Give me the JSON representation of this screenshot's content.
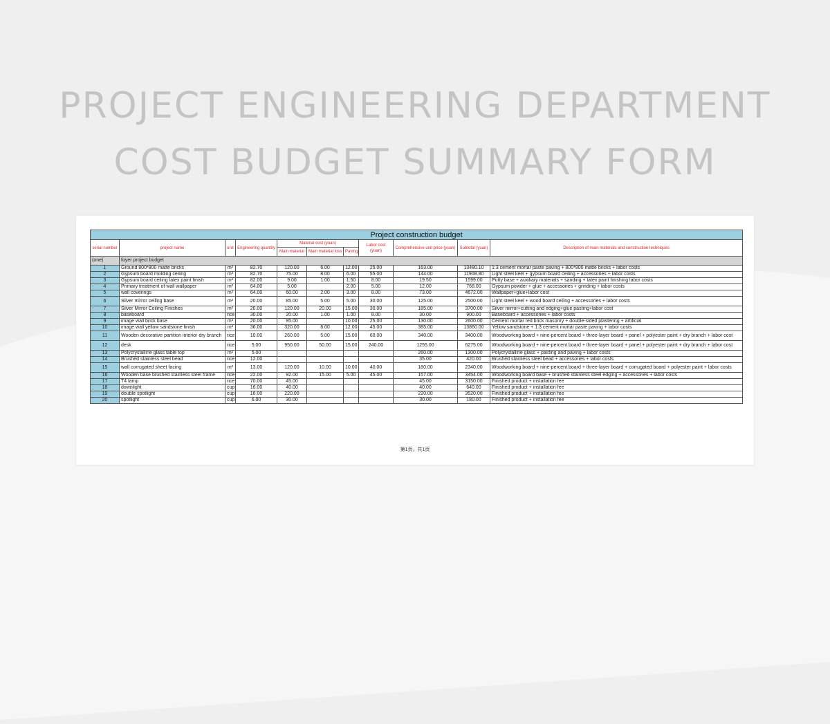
{
  "hero": {
    "line1": "PROJECT ENGINEERING DEPARTMENT",
    "line2": "COST BUDGET SUMMARY FORM"
  },
  "table": {
    "title": "Project construction budget",
    "headers": {
      "serial": "serial number",
      "name": "project name",
      "unit": "unit",
      "quantity": "Engineering quantity",
      "material_group": "Material cost (yuan)",
      "main_material": "Main material",
      "material_loss": "Main material loss",
      "paving": "Paving",
      "labor": "Labor cost (yuan)",
      "unit_price": "Comprehensive unit price (yuan)",
      "subtotal": "Subtotal (yuan)",
      "description": "Description of main materials and construction techniques"
    },
    "section": {
      "code": "(one)",
      "name": "foyer project budget"
    },
    "rows": [
      {
        "n": "1",
        "name": "Ground 800*800 matte bricks",
        "unit": "m²",
        "qty": "82.70",
        "mm": "120.00",
        "loss": "6.00",
        "pav": "12.00",
        "labor": "25.00",
        "price": "163.00",
        "sub": "13480.10",
        "desc": "1:3 cement mortar paste paving + 800*800 matte bricks + labor costs"
      },
      {
        "n": "2",
        "name": "Gypsum board molding ceiling",
        "unit": "m²",
        "qty": "82.70",
        "mm": "75.00",
        "loss": "8.00",
        "pav": "6.00",
        "labor": "55.00",
        "price": "144.00",
        "sub": "11908.80",
        "desc": "Light steel keel + gypsum board ceiling + accessories + labor costs"
      },
      {
        "n": "3",
        "name": "Gypsum board ceiling latex paint finish",
        "unit": "m²",
        "qty": "82.00",
        "mm": "9.00",
        "loss": "1.00",
        "pav": "1.50",
        "labor": "8.00",
        "price": "19.50",
        "sub": "1599.00",
        "desc": "Putty base + auxiliary materials + sanding + latex paint finishing labor costs"
      },
      {
        "n": "4",
        "name": "Primary treatment of wall wallpaper",
        "unit": "m²",
        "qty": "64.00",
        "mm": "5.00",
        "loss": "",
        "pav": "2.00",
        "labor": "5.00",
        "price": "12.00",
        "sub": "768.00",
        "desc": "Gypsum powder + glue + accessories + grinding + labor costs"
      },
      {
        "n": "5",
        "name": "wall coverings",
        "unit": "m²",
        "qty": "64.00",
        "mm": "60.00",
        "loss": "2.00",
        "pav": "3.00",
        "labor": "8.00",
        "price": "73.00",
        "sub": "4672.00",
        "desc": "Wallpaper+glue+labor cost"
      },
      {
        "n": "6",
        "name": "Silver mirror ceiling base",
        "unit": "m²",
        "qty": "20.00",
        "mm": "85.00",
        "loss": "5.00",
        "pav": "5.00",
        "labor": "30.00",
        "price": "125.00",
        "sub": "2500.00",
        "desc": "Light steel keel + wood board ceiling + accessories + labor costs",
        "tall": true
      },
      {
        "n": "7",
        "name": "Silver Mirror Ceiling Finishes",
        "unit": "m²",
        "qty": "20.00",
        "mm": "120.00",
        "loss": "20.00",
        "pav": "15.00",
        "labor": "30.00",
        "price": "185.00",
        "sub": "3700.00",
        "desc": "Silver mirror+cutting and edging+glue pasting+labor cost"
      },
      {
        "n": "8",
        "name": "baseboard",
        "unit": "rice",
        "qty": "30.00",
        "mm": "20.00",
        "loss": "1.00",
        "pav": "1.00",
        "labor": "8.00",
        "price": "30.00",
        "sub": "900.00",
        "desc": "Baseboard + accessories + labor costs"
      },
      {
        "n": "9",
        "name": "image wall brick base",
        "unit": "m²",
        "qty": "20.00",
        "mm": "95.00",
        "loss": "",
        "pav": "10.00",
        "labor": "25.00",
        "price": "130.00",
        "sub": "2600.00",
        "desc": "Cement mortar red brick masonry + double-sided plastering + artificial"
      },
      {
        "n": "10",
        "name": "image wall yellow sandstone finish",
        "unit": "m²",
        "qty": "36.00",
        "mm": "320.00",
        "loss": "8.00",
        "pav": "12.00",
        "labor": "45.00",
        "price": "385.00",
        "sub": "13860.00",
        "desc": "Yellow sandstone + 1:3 cement mortar paste paving + labor costs"
      },
      {
        "n": "11",
        "name": "Wooden decorative partition interior dry branch",
        "unit": "rice",
        "qty": "10.00",
        "mm": "260.00",
        "loss": "5.00",
        "pav": "15.00",
        "labor": "60.00",
        "price": "340.00",
        "sub": "3400.00",
        "desc": "Woodworking board + nine-percent board + three-layer board + panel + polyester paint + dry branch + labor cost",
        "tall": true
      },
      {
        "n": "12",
        "name": "desk",
        "unit": "rice",
        "qty": "5.00",
        "mm": "950.00",
        "loss": "50.00",
        "pav": "15.00",
        "labor": "240.00",
        "price": "1255.00",
        "sub": "6275.00",
        "desc": "Woodworking board + nine-percent board + three-layer board + panel + polyester paint + dry branch + labor cost",
        "tall": true
      },
      {
        "n": "13",
        "name": "Polycrystalline glass table top",
        "unit": "m²",
        "qty": "5.00",
        "mm": "",
        "loss": "",
        "pav": "",
        "labor": "",
        "price": "260.00",
        "sub": "1300.00",
        "desc": "Polycrystalline glass + pasting and paving + labor costs"
      },
      {
        "n": "14",
        "name": "Brushed stainless steel bead",
        "unit": "rice",
        "qty": "12.00",
        "mm": "",
        "loss": "",
        "pav": "",
        "labor": "",
        "price": "35.00",
        "sub": "420.00",
        "desc": "Brushed stainless steel bead + accessories + labor costs"
      },
      {
        "n": "15",
        "name": "wall corrugated sheet facing",
        "unit": "m²",
        "qty": "13.00",
        "mm": "120.00",
        "loss": "10.00",
        "pav": "10.00",
        "labor": "40.00",
        "price": "180.00",
        "sub": "2340.00",
        "desc": "Woodworking board + nine-percent board + three-layer board + corrugated board + polyester paint + labor costs",
        "tall": true
      },
      {
        "n": "16",
        "name": "Wooden base brushed stainless steel frame",
        "unit": "rice",
        "qty": "22.00",
        "mm": "92.00",
        "loss": "15.00",
        "pav": "5.00",
        "labor": "45.00",
        "price": "157.00",
        "sub": "3454.00",
        "desc": "Woodworking board base + brushed stainless steel edging + accessories + labor costs"
      },
      {
        "n": "17",
        "name": "T4 lamp",
        "unit": "rice",
        "qty": "70.00",
        "mm": "45.00",
        "loss": "",
        "pav": "",
        "labor": "",
        "price": "45.00",
        "sub": "3150.00",
        "desc": "Finished product + installation fee"
      },
      {
        "n": "18",
        "name": "downlight",
        "unit": "cup",
        "qty": "16.00",
        "mm": "40.00",
        "loss": "",
        "pav": "",
        "labor": "",
        "price": "40.00",
        "sub": "640.00",
        "desc": "Finished product + installation fee"
      },
      {
        "n": "19",
        "name": "double spotlight",
        "unit": "cup",
        "qty": "16.00",
        "mm": "220.00",
        "loss": "",
        "pav": "",
        "labor": "",
        "price": "220.00",
        "sub": "3520.00",
        "desc": "Finished product + installation fee"
      },
      {
        "n": "20",
        "name": "spotlight",
        "unit": "cup",
        "qty": "6.00",
        "mm": "30.00",
        "loss": "",
        "pav": "",
        "labor": "",
        "price": "30.00",
        "sub": "180.00",
        "desc": "Finished product + installation fee"
      }
    ],
    "footer": "第1页，共1页"
  }
}
